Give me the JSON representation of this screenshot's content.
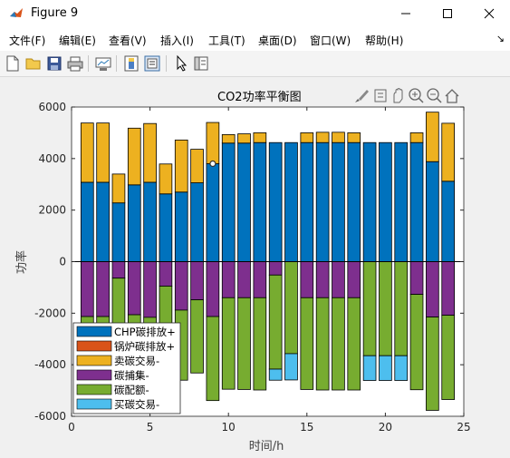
{
  "window": {
    "title": "Figure 9",
    "minimize_icon": "minimize-icon",
    "maximize_icon": "maximize-icon",
    "close_icon": "close-icon"
  },
  "menu": {
    "items": [
      "文件(F)",
      "编辑(E)",
      "查看(V)",
      "插入(I)",
      "工具(T)",
      "桌面(D)",
      "窗口(W)",
      "帮助(H)"
    ]
  },
  "toolbar": {
    "icons": [
      "new-figure-icon",
      "open-file-icon",
      "save-icon",
      "print-icon",
      "link-plot-icon",
      "colorbar-icon",
      "legend-icon",
      "pointer-icon",
      "property-inspector-icon"
    ]
  },
  "axes_toolbar": {
    "icons": [
      "brush-icon",
      "data-tips-icon",
      "pan-icon",
      "zoom-in-icon",
      "zoom-out-icon",
      "home-icon"
    ]
  },
  "chart_data": {
    "type": "bar",
    "stacked": true,
    "title": "CO2功率平衡图",
    "xlabel": "时间/h",
    "ylabel": "功率",
    "xlim": [
      0,
      25
    ],
    "ylim": [
      -6000,
      6000
    ],
    "xticks": [
      0,
      5,
      10,
      15,
      20,
      25
    ],
    "yticks": [
      -6000,
      -4000,
      -2000,
      0,
      2000,
      4000,
      6000
    ],
    "ytick_labels": [
      "-6000",
      "-4000",
      "-2000",
      "0",
      "2000",
      "4000",
      "6000"
    ],
    "legend_position": "bottom-left",
    "categories": [
      1,
      2,
      3,
      4,
      5,
      6,
      7,
      8,
      9,
      10,
      11,
      12,
      13,
      14,
      15,
      16,
      17,
      18,
      19,
      20,
      21,
      22,
      23,
      24
    ],
    "series": [
      {
        "name": "CHP碳排放+",
        "color": "#0072BD",
        "values": [
          3080,
          3080,
          2280,
          2980,
          3080,
          2630,
          2700,
          3060,
          3800,
          4600,
          4600,
          4620,
          4620,
          4620,
          4620,
          4620,
          4620,
          4620,
          4620,
          4620,
          4620,
          4620,
          3880,
          3120
        ]
      },
      {
        "name": "锅炉碳排放+",
        "color": "#D95319",
        "values": [
          0,
          0,
          0,
          0,
          0,
          0,
          0,
          0,
          0,
          0,
          0,
          0,
          0,
          0,
          0,
          0,
          0,
          0,
          0,
          0,
          0,
          0,
          0,
          0
        ]
      },
      {
        "name": "卖碳交易-",
        "color": "#EDB120",
        "values": [
          2300,
          2300,
          1120,
          2200,
          2280,
          1160,
          2020,
          1300,
          1600,
          330,
          360,
          380,
          0,
          0,
          380,
          400,
          400,
          380,
          0,
          0,
          0,
          380,
          1920,
          2250
        ]
      },
      {
        "name": "碳捕集-",
        "color": "#7E2F8E",
        "values": [
          -2130,
          -2130,
          -640,
          -2060,
          -2160,
          -950,
          -1880,
          -1480,
          -2130,
          -1400,
          -1400,
          -1400,
          -520,
          0,
          -1400,
          -1400,
          -1400,
          -1400,
          0,
          0,
          0,
          -1270,
          -2150,
          -2080
        ]
      },
      {
        "name": "碳配额-",
        "color": "#77AC30",
        "values": [
          -3250,
          -3250,
          -3100,
          -3240,
          -3250,
          -3040,
          -2720,
          -2840,
          -3260,
          -3550,
          -3560,
          -3580,
          -3650,
          -3570,
          -3560,
          -3580,
          -3580,
          -3580,
          -3650,
          -3650,
          -3650,
          -3700,
          -3620,
          -3270
        ]
      },
      {
        "name": "买碳交易-",
        "color": "#4DBEEE",
        "values": [
          0,
          0,
          0,
          0,
          0,
          0,
          0,
          0,
          0,
          0,
          0,
          0,
          -430,
          -1020,
          0,
          0,
          0,
          0,
          -960,
          -960,
          -960,
          0,
          0,
          0
        ]
      }
    ],
    "data_tip": {
      "x": 9,
      "y": 3800
    }
  }
}
